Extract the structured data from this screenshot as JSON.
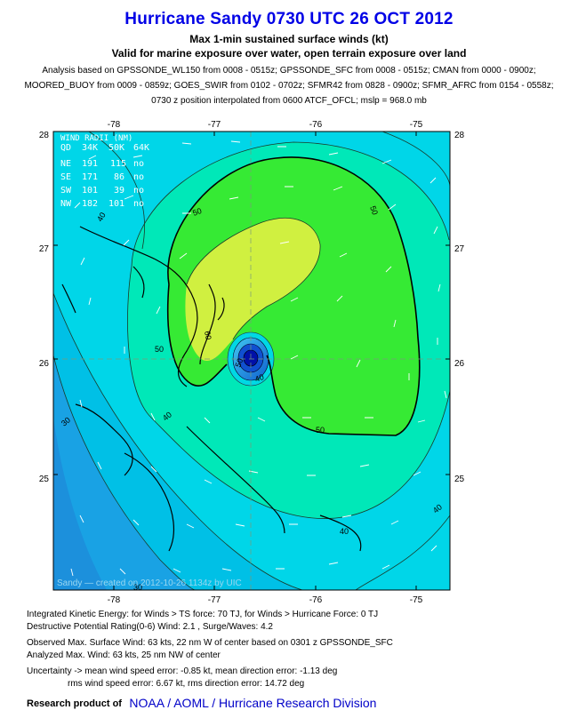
{
  "header": {
    "title": "Hurricane Sandy 0730 UTC 26 OCT 2012",
    "subtitle1": "Max 1-min sustained surface winds (kt)",
    "subtitle2": "Valid for marine exposure over water, open terrain exposure over land"
  },
  "analysis": {
    "line1": "Analysis based on GPSSONDE_WL150 from 0008 - 0515z; GPSSONDE_SFC from 0008 - 0515z; CMAN from 0000 - 0900z;",
    "line2": "MOORED_BUOY from 0009 - 0859z; GOES_SWIR from 0102 - 0702z; SFMR42 from 0828 - 0900z; SFMR_AFRC from 0154 - 0558z;",
    "line3": "0730 z position interpolated from 0600 ATCF_OFCL; mslp = 968.0 mb"
  },
  "map": {
    "lon_ticks": [
      "-78",
      "-77",
      "-76",
      "-75"
    ],
    "lat_ticks": [
      "28",
      "27",
      "26",
      "25"
    ],
    "contour_labels": [
      "40",
      "50",
      "60",
      "50",
      "50",
      "50",
      "40",
      "30",
      "40",
      "40",
      "40",
      "50",
      "30"
    ],
    "wind_radii": {
      "title": "WIND RADII (NM)",
      "header": [
        "QD",
        "34K",
        "50K",
        "64K"
      ],
      "rows": [
        [
          "NE",
          "191",
          "115",
          "no"
        ],
        [
          "SE",
          "171",
          "86",
          "no"
        ],
        [
          "SW",
          "101",
          "39",
          "no"
        ],
        [
          "NW",
          "182",
          "101",
          "no"
        ]
      ]
    },
    "watermark": "Sandy — created on 2012-10-26 1134z by UIC",
    "colors": {
      "ts_light": "#00d6e8",
      "ts_30": "#00c0e6",
      "ts_low": "#19a2e4",
      "ts_low2": "#1c90dc",
      "band_40": "#00e8b8",
      "band_50": "#36ea34",
      "band_60": "#d0f040",
      "eye": "#0010a8"
    }
  },
  "footer": {
    "line1": "Integrated Kinetic Energy: for Winds > TS force: 70 TJ, for Winds > Hurricane Force: 0 TJ",
    "line2": "Destructive Potential Rating(0-6)  Wind: 2.1 , Surge/Waves: 4.2",
    "line3": "Observed Max. Surface Wind: 63 kts, 22 nm W of center based on 0301 z GPSSONDE_SFC",
    "line4": "Analyzed Max. Wind: 63 kts, 25 nm  NW of center",
    "line5": "Uncertainty -> mean wind speed error:  -0.85 kt, mean direction error:  -1.13 deg",
    "line6": "rms wind speed error: 6.67 kt, rms direction error: 14.72 deg",
    "credit_prefix": "Research product of",
    "credit_org": "NOAA / AOML / Hurricane Research Division"
  }
}
